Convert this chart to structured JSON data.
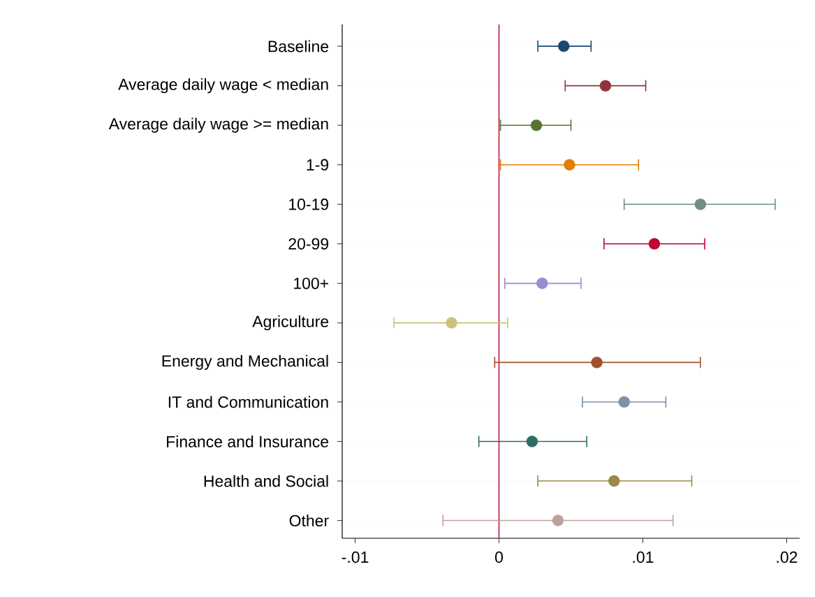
{
  "chart_data": {
    "type": "scatter",
    "orientation": "horizontal",
    "categories": [
      "Baseline",
      "Average daily wage < median",
      "Average daily wage >= median",
      "1-9",
      "10-19",
      "20-99",
      "100+",
      "Agriculture",
      "Energy and Mechanical",
      "IT and Communication",
      "Finance and Insurance",
      "Health and Social",
      "Other"
    ],
    "values": [
      0.0045,
      0.0074,
      0.0026,
      0.0049,
      0.014,
      0.0108,
      0.003,
      -0.0033,
      0.0068,
      0.0087,
      0.0023,
      0.008,
      0.0041
    ],
    "errors": [
      [
        0.0027,
        0.0064
      ],
      [
        0.0046,
        0.0102
      ],
      [
        0.0001,
        0.005
      ],
      [
        0.0001,
        0.0097
      ],
      [
        0.0087,
        0.0192
      ],
      [
        0.0073,
        0.0143
      ],
      [
        0.0004,
        0.0057
      ],
      [
        -0.0073,
        0.0006
      ],
      [
        -0.0003,
        0.014
      ],
      [
        0.0058,
        0.0116
      ],
      [
        -0.0014,
        0.0061
      ],
      [
        0.0027,
        0.0134
      ],
      [
        -0.0039,
        0.0121
      ]
    ],
    "colors": [
      "#1a476f",
      "#90353b",
      "#55752f",
      "#e37e00",
      "#6e8e84",
      "#c10534",
      "#938dd2",
      "#cac27e",
      "#a0522d",
      "#7b92a8",
      "#2d6d66",
      "#9c8847",
      "#bfa19c"
    ],
    "xlim": [
      -0.0109,
      0.0209
    ],
    "xticks": [
      {
        "value": -0.01,
        "label": "-.01"
      },
      {
        "value": 0,
        "label": "0"
      },
      {
        "value": 0.01,
        "label": ".01"
      },
      {
        "value": 0.02,
        "label": ".02"
      }
    ],
    "grid": "y",
    "marker": "circle",
    "legend": false,
    "ref_lines": [
      {
        "axis": "x",
        "value": 0,
        "color": "#c10534"
      }
    ]
  }
}
